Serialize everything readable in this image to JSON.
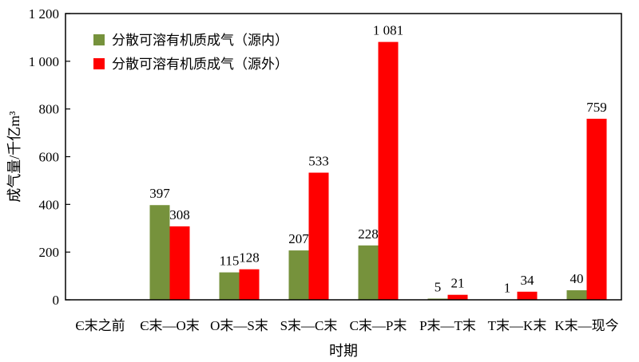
{
  "chart_data": {
    "type": "bar",
    "categories": [
      "Є末之前",
      "Є末—O末",
      "O末—S末",
      "S末—C末",
      "C末—P末",
      "P末—T末",
      "T末—K末",
      "K末—现今"
    ],
    "series": [
      {
        "name": "分散可溶有机质成气（源内）",
        "values": [
          null,
          397,
          115,
          207,
          228,
          5,
          1,
          40
        ],
        "labels": [
          "",
          "397",
          "115",
          "207",
          "228",
          "5",
          "1",
          "40"
        ],
        "color": "#76923c"
      },
      {
        "name": "分散可溶有机质成气（源外）",
        "values": [
          null,
          308,
          128,
          533,
          1081,
          21,
          34,
          759
        ],
        "labels": [
          "",
          "308",
          "128",
          "533",
          "1 081",
          "21",
          "34",
          "759"
        ],
        "color": "#ff0000"
      }
    ],
    "xlabel": "时期",
    "ylabel": "成气量/千亿m³",
    "ylim": [
      0,
      1200
    ],
    "yticks": [
      0,
      200,
      400,
      600,
      800,
      1000,
      1200
    ],
    "ytick_labels": [
      "0",
      "200",
      "400",
      "600",
      "800",
      "1 000",
      "1 200"
    ],
    "grid": false,
    "legend_position": "top-left"
  }
}
